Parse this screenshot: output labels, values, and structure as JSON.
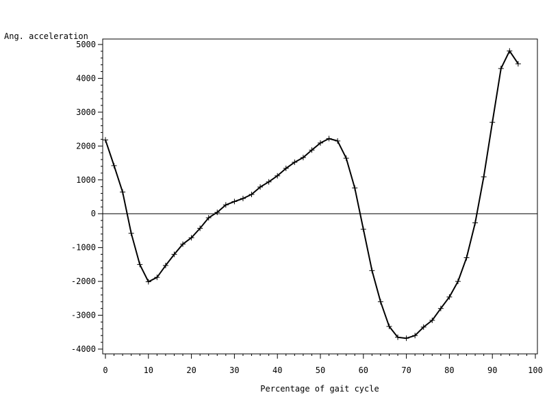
{
  "chart_data": {
    "type": "line",
    "title": "",
    "xlabel": "Percentage of gait cycle",
    "ylabel": "Ang. acceleration",
    "xlim": [
      0,
      100
    ],
    "ylim": [
      -4000,
      5000
    ],
    "xticks": [
      0,
      10,
      20,
      30,
      40,
      50,
      60,
      70,
      80,
      90,
      100
    ],
    "yticks": [
      5000,
      4000,
      3000,
      2000,
      1000,
      0,
      -1000,
      -2000,
      -3000,
      -4000
    ],
    "reference_line_y": 0,
    "grid": false,
    "marker": "plus",
    "series": [
      {
        "x": [
          0,
          2,
          4,
          6,
          8,
          10,
          12,
          14,
          16,
          18,
          20,
          22,
          24,
          26,
          28,
          30,
          32,
          34,
          36,
          38,
          40,
          42,
          44,
          46,
          48,
          50,
          52,
          54,
          56,
          58,
          60,
          62,
          64,
          66,
          68,
          70,
          72,
          74,
          76,
          78,
          80,
          82,
          84,
          86,
          88,
          90,
          92,
          94,
          96
        ],
        "y": [
          2180,
          1420,
          640,
          -580,
          -1500,
          -2010,
          -1880,
          -1530,
          -1200,
          -900,
          -710,
          -430,
          -120,
          40,
          260,
          360,
          450,
          570,
          790,
          940,
          1120,
          1340,
          1520,
          1660,
          1880,
          2090,
          2220,
          2150,
          1640,
          760,
          -460,
          -1680,
          -2600,
          -3330,
          -3650,
          -3680,
          -3600,
          -3350,
          -3150,
          -2800,
          -2460,
          -2000,
          -1300,
          -270,
          1090,
          2700,
          4290,
          4810,
          4430
        ]
      }
    ]
  }
}
